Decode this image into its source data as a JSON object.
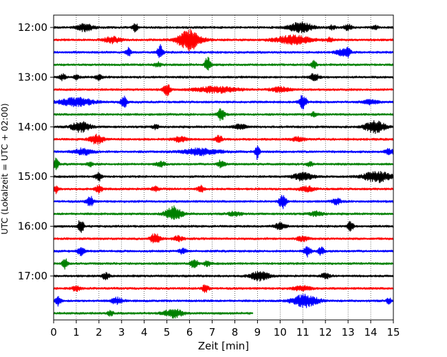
{
  "chart_data": {
    "type": "line",
    "chart_kind": "helicorder",
    "xlabel": "Zeit  [min]",
    "ylabel": "UTC (Lokalzeit = UTC + 02:00)",
    "xlim": [
      0,
      15
    ],
    "xticks": [
      0,
      1,
      2,
      3,
      4,
      5,
      6,
      7,
      8,
      9,
      10,
      11,
      12,
      13,
      14,
      15
    ],
    "xtick_labels": [
      "0",
      "1",
      "2",
      "3",
      "4",
      "5",
      "6",
      "7",
      "8",
      "9",
      "10",
      "11",
      "12",
      "13",
      "14",
      "15"
    ],
    "x_grid": "dotted",
    "ytick_labels": [
      "12:00",
      "13:00",
      "14:00",
      "15:00",
      "16:00",
      "17:00"
    ],
    "ytick_rows": [
      0,
      4,
      8,
      12,
      16,
      20
    ],
    "row_minutes": 15,
    "color_cycle": [
      "#000000",
      "#ff0000",
      "#0000ff",
      "#008000"
    ],
    "rows": [
      {
        "start": "12:00",
        "end_min": 15,
        "events": [
          [
            1.4,
            0.35,
            0.7
          ],
          [
            3.6,
            0.1,
            1.0
          ],
          [
            10.9,
            0.5,
            1.0
          ],
          [
            12.3,
            0.15,
            0.4
          ],
          [
            13.0,
            0.2,
            0.5
          ],
          [
            14.2,
            0.12,
            0.45
          ]
        ]
      },
      {
        "start": "12:15",
        "end_min": 15,
        "events": [
          [
            2.6,
            0.35,
            0.6
          ],
          [
            6.0,
            0.5,
            2.0
          ],
          [
            10.6,
            0.8,
            0.8
          ],
          [
            12.2,
            0.12,
            0.4
          ]
        ]
      },
      {
        "start": "12:30",
        "end_min": 15,
        "events": [
          [
            3.3,
            0.1,
            0.9
          ],
          [
            4.7,
            0.12,
            1.4
          ],
          [
            12.7,
            0.25,
            0.6
          ],
          [
            13.0,
            0.12,
            0.9
          ]
        ]
      },
      {
        "start": "12:45",
        "end_min": 15,
        "events": [
          [
            4.6,
            0.15,
            0.45
          ],
          [
            6.8,
            0.12,
            1.5
          ],
          [
            11.5,
            0.12,
            0.7
          ]
        ]
      },
      {
        "start": "13:00",
        "end_min": 15,
        "events": [
          [
            0.4,
            0.15,
            0.55
          ],
          [
            1.0,
            0.12,
            0.45
          ],
          [
            2.0,
            0.15,
            0.5
          ],
          [
            11.5,
            0.2,
            0.7
          ]
        ]
      },
      {
        "start": "13:15",
        "end_min": 15,
        "events": [
          [
            5.0,
            0.15,
            1.2
          ],
          [
            7.2,
            0.9,
            0.55
          ],
          [
            10.0,
            0.4,
            0.45
          ]
        ]
      },
      {
        "start": "13:30",
        "end_min": 15,
        "events": [
          [
            1.0,
            0.7,
            0.85
          ],
          [
            3.1,
            0.12,
            1.5
          ],
          [
            11.0,
            0.15,
            1.5
          ],
          [
            14.0,
            0.3,
            0.45
          ]
        ]
      },
      {
        "start": "13:45",
        "end_min": 15,
        "events": [
          [
            7.4,
            0.15,
            1.2
          ],
          [
            11.5,
            0.15,
            0.4
          ]
        ]
      },
      {
        "start": "14:00",
        "end_min": 15,
        "events": [
          [
            1.2,
            0.4,
            1.0
          ],
          [
            4.5,
            0.15,
            0.4
          ],
          [
            8.2,
            0.3,
            0.45
          ],
          [
            14.2,
            0.45,
            1.1
          ]
        ]
      },
      {
        "start": "14:15",
        "end_min": 15,
        "events": [
          [
            1.9,
            0.3,
            0.9
          ],
          [
            5.6,
            0.3,
            0.5
          ],
          [
            7.3,
            0.15,
            0.7
          ],
          [
            10.8,
            0.3,
            0.4
          ]
        ]
      },
      {
        "start": "14:30",
        "end_min": 15,
        "events": [
          [
            1.3,
            0.4,
            0.6
          ],
          [
            6.5,
            0.8,
            0.65
          ],
          [
            9.0,
            0.1,
            1.4
          ],
          [
            14.8,
            0.2,
            0.55
          ]
        ]
      },
      {
        "start": "14:45",
        "end_min": 15,
        "events": [
          [
            0.1,
            0.12,
            1.1
          ],
          [
            1.6,
            0.12,
            0.45
          ],
          [
            4.7,
            0.2,
            0.5
          ],
          [
            7.4,
            0.15,
            0.8
          ],
          [
            11.3,
            0.15,
            0.4
          ]
        ]
      },
      {
        "start": "15:00",
        "end_min": 15,
        "events": [
          [
            2.0,
            0.15,
            0.8
          ],
          [
            11.0,
            0.4,
            0.8
          ],
          [
            14.3,
            0.6,
            1.0
          ]
        ]
      },
      {
        "start": "15:15",
        "end_min": 15,
        "events": [
          [
            0.1,
            0.1,
            0.8
          ],
          [
            2.0,
            0.15,
            0.7
          ],
          [
            4.5,
            0.15,
            0.45
          ],
          [
            6.5,
            0.15,
            0.6
          ],
          [
            11.2,
            0.3,
            0.5
          ]
        ]
      },
      {
        "start": "15:30",
        "end_min": 15,
        "events": [
          [
            1.6,
            0.15,
            1.0
          ],
          [
            10.1,
            0.15,
            1.5
          ],
          [
            12.5,
            0.2,
            0.55
          ]
        ]
      },
      {
        "start": "15:45",
        "end_min": 15,
        "events": [
          [
            5.3,
            0.35,
            1.4
          ],
          [
            8.0,
            0.3,
            0.4
          ],
          [
            11.6,
            0.3,
            0.45
          ]
        ]
      },
      {
        "start": "16:00",
        "end_min": 15,
        "events": [
          [
            1.2,
            0.12,
            1.5
          ],
          [
            10.0,
            0.25,
            0.6
          ],
          [
            13.1,
            0.12,
            1.2
          ]
        ]
      },
      {
        "start": "16:15",
        "end_min": 15,
        "events": [
          [
            4.5,
            0.2,
            1.1
          ],
          [
            5.5,
            0.2,
            0.5
          ],
          [
            11.0,
            0.25,
            0.45
          ]
        ]
      },
      {
        "start": "16:30",
        "end_min": 15,
        "events": [
          [
            1.2,
            0.15,
            0.9
          ],
          [
            5.7,
            0.15,
            0.5
          ],
          [
            11.2,
            0.15,
            1.0
          ],
          [
            11.8,
            0.15,
            0.7
          ]
        ]
      },
      {
        "start": "16:45",
        "end_min": 15,
        "events": [
          [
            0.5,
            0.12,
            1.0
          ],
          [
            6.2,
            0.15,
            1.1
          ],
          [
            6.8,
            0.15,
            0.5
          ]
        ]
      },
      {
        "start": "17:00",
        "end_min": 15,
        "events": [
          [
            2.3,
            0.15,
            0.7
          ],
          [
            9.1,
            0.4,
            0.85
          ],
          [
            12.0,
            0.2,
            0.45
          ]
        ]
      },
      {
        "start": "17:15",
        "end_min": 15,
        "events": [
          [
            1.0,
            0.2,
            0.45
          ],
          [
            6.7,
            0.15,
            0.7
          ],
          [
            11.0,
            0.4,
            0.45
          ]
        ]
      },
      {
        "start": "17:30",
        "end_min": 15,
        "events": [
          [
            0.2,
            0.12,
            0.9
          ],
          [
            2.8,
            0.25,
            0.6
          ],
          [
            11.1,
            0.55,
            1.2
          ],
          [
            14.8,
            0.12,
            0.5
          ]
        ]
      },
      {
        "start": "17:45",
        "end_min": 8.8,
        "events": [
          [
            2.5,
            0.12,
            0.5
          ],
          [
            5.3,
            0.4,
            0.8
          ]
        ]
      }
    ]
  }
}
